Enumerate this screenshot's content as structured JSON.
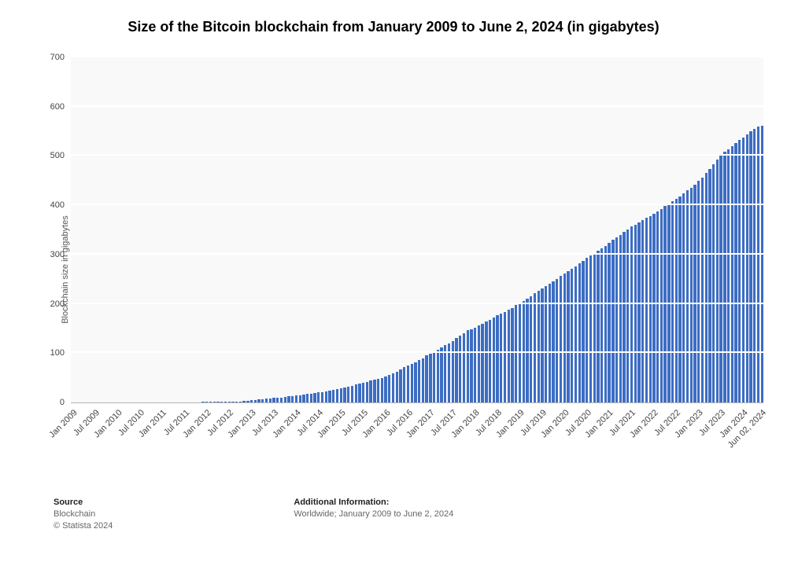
{
  "chart": {
    "type": "bar",
    "title": "Size of the Bitcoin blockchain from January 2009 to June 2, 2024 (in gigabytes)",
    "title_fontsize": 18,
    "ylabel": "Blockchain size in gigabytes",
    "ylabel_fontsize": 11,
    "ylim": [
      0,
      700
    ],
    "ytick_step": 100,
    "yticks": [
      0,
      100,
      200,
      300,
      400,
      500,
      600,
      700
    ],
    "categories": [
      "Jan 2009",
      "Feb 2009",
      "Mar 2009",
      "Apr 2009",
      "May 2009",
      "Jun 2009",
      "Jul 2009",
      "Aug 2009",
      "Sep 2009",
      "Oct 2009",
      "Nov 2009",
      "Dec 2009",
      "Jan 2010",
      "Feb 2010",
      "Mar 2010",
      "Apr 2010",
      "May 2010",
      "Jun 2010",
      "Jul 2010",
      "Aug 2010",
      "Sep 2010",
      "Oct 2010",
      "Nov 2010",
      "Dec 2010",
      "Jan 2011",
      "Feb 2011",
      "Mar 2011",
      "Apr 2011",
      "May 2011",
      "Jun 2011",
      "Jul 2011",
      "Aug 2011",
      "Sep 2011",
      "Oct 2011",
      "Nov 2011",
      "Dec 2011",
      "Jan 2012",
      "Feb 2012",
      "Mar 2012",
      "Apr 2012",
      "May 2012",
      "Jun 2012",
      "Jul 2012",
      "Aug 2012",
      "Sep 2012",
      "Oct 2012",
      "Nov 2012",
      "Dec 2012",
      "Jan 2013",
      "Feb 2013",
      "Mar 2013",
      "Apr 2013",
      "May 2013",
      "Jun 2013",
      "Jul 2013",
      "Aug 2013",
      "Sep 2013",
      "Oct 2013",
      "Nov 2013",
      "Dec 2013",
      "Jan 2014",
      "Feb 2014",
      "Mar 2014",
      "Apr 2014",
      "May 2014",
      "Jun 2014",
      "Jul 2014",
      "Aug 2014",
      "Sep 2014",
      "Oct 2014",
      "Nov 2014",
      "Dec 2014",
      "Jan 2015",
      "Feb 2015",
      "Mar 2015",
      "Apr 2015",
      "May 2015",
      "Jun 2015",
      "Jul 2015",
      "Aug 2015",
      "Sep 2015",
      "Oct 2015",
      "Nov 2015",
      "Dec 2015",
      "Jan 2016",
      "Feb 2016",
      "Mar 2016",
      "Apr 2016",
      "May 2016",
      "Jun 2016",
      "Jul 2016",
      "Aug 2016",
      "Sep 2016",
      "Oct 2016",
      "Nov 2016",
      "Dec 2016",
      "Jan 2017",
      "Feb 2017",
      "Mar 2017",
      "Apr 2017",
      "May 2017",
      "Jun 2017",
      "Jul 2017",
      "Aug 2017",
      "Sep 2017",
      "Oct 2017",
      "Nov 2017",
      "Dec 2017",
      "Jan 2018",
      "Feb 2018",
      "Mar 2018",
      "Apr 2018",
      "May 2018",
      "Jun 2018",
      "Jul 2018",
      "Aug 2018",
      "Sep 2018",
      "Oct 2018",
      "Nov 2018",
      "Dec 2018",
      "Jan 2019",
      "Feb 2019",
      "Mar 2019",
      "Apr 2019",
      "May 2019",
      "Jun 2019",
      "Jul 2019",
      "Aug 2019",
      "Sep 2019",
      "Oct 2019",
      "Nov 2019",
      "Dec 2019",
      "Jan 2020",
      "Feb 2020",
      "Mar 2020",
      "Apr 2020",
      "May 2020",
      "Jun 2020",
      "Jul 2020",
      "Aug 2020",
      "Sep 2020",
      "Oct 2020",
      "Nov 2020",
      "Dec 2020",
      "Jan 2021",
      "Feb 2021",
      "Mar 2021",
      "Apr 2021",
      "May 2021",
      "Jun 2021",
      "Jul 2021",
      "Aug 2021",
      "Sep 2021",
      "Oct 2021",
      "Nov 2021",
      "Dec 2021",
      "Jan 2022",
      "Feb 2022",
      "Mar 2022",
      "Apr 2022",
      "May 2022",
      "Jun 2022",
      "Jul 2022",
      "Aug 2022",
      "Sep 2022",
      "Oct 2022",
      "Nov 2022",
      "Dec 2022",
      "Jan 2023",
      "Feb 2023",
      "Mar 2023",
      "Apr 2023",
      "May 2023",
      "Jun 2023",
      "Jul 2023",
      "Aug 2023",
      "Sep 2023",
      "Oct 2023",
      "Nov 2023",
      "Dec 2023",
      "Jan 2024",
      "Feb 2024",
      "Mar 2024",
      "Apr 2024",
      "May 2024",
      "Jun 02, 2024"
    ],
    "values": [
      0,
      0,
      0,
      0,
      0,
      0,
      0,
      0,
      0,
      0,
      0,
      0,
      0,
      0,
      0,
      0,
      0,
      0,
      0,
      0,
      0,
      0,
      0,
      0,
      0,
      0,
      0,
      0,
      0,
      0,
      0,
      0,
      0,
      0,
      0,
      1,
      1,
      1,
      1,
      1,
      1,
      1,
      1,
      1,
      2,
      2,
      3,
      4,
      5,
      5,
      6,
      7,
      8,
      8,
      9,
      9,
      10,
      11,
      12,
      13,
      14,
      15,
      16,
      17,
      18,
      19,
      20,
      21,
      22,
      24,
      26,
      27,
      29,
      30,
      32,
      34,
      36,
      38,
      40,
      42,
      44,
      46,
      48,
      50,
      53,
      56,
      59,
      63,
      67,
      72,
      75,
      78,
      82,
      86,
      90,
      95,
      99,
      103,
      107,
      111,
      116,
      120,
      125,
      130,
      135,
      140,
      146,
      149,
      152,
      156,
      160,
      164,
      168,
      173,
      177,
      181,
      184,
      188,
      192,
      197,
      202,
      206,
      211,
      216,
      221,
      226,
      231,
      236,
      241,
      246,
      251,
      256,
      261,
      266,
      271,
      276,
      282,
      287,
      293,
      298,
      303,
      308,
      313,
      318,
      324,
      330,
      335,
      340,
      346,
      351,
      357,
      361,
      365,
      370,
      374,
      378,
      383,
      388,
      393,
      398,
      403,
      408,
      413,
      418,
      424,
      430,
      436,
      442,
      449,
      456,
      465,
      474,
      483,
      492,
      500,
      508,
      514,
      520,
      526,
      532,
      538,
      544,
      550,
      555,
      560,
      562
    ],
    "xticks_visible": [
      "Jan 2009",
      "Jul 2009",
      "Jan 2010",
      "Jul 2010",
      "Jan 2011",
      "Jul 2011",
      "Jan 2012",
      "Jul 2012",
      "Jan 2013",
      "Jul 2013",
      "Jan 2014",
      "Jul 2014",
      "Jan 2015",
      "Jul 2015",
      "Jan 2016",
      "Jul 2016",
      "Jan 2017",
      "Jul 2017",
      "Jan 2018",
      "Jul 2018",
      "Jan 2019",
      "Jul 2019",
      "Jan 2020",
      "Jul 2020",
      "Jan 2021",
      "Jul 2021",
      "Jan 2022",
      "Jul 2022",
      "Jan 2023",
      "Jul 2023",
      "Jan 2024",
      "Jun 02, 2024"
    ],
    "bar_color": "#3c6dc4",
    "plot_background": "#f9f9f9",
    "grid_color": "#ffffff",
    "axis_color": "#b5b5b5",
    "tick_label_fontsize": 11,
    "tick_label_color": "#444444",
    "bar_width_ratio": 0.7
  },
  "footer": {
    "source_heading": "Source",
    "source_text": "Blockchain",
    "copyright": "© Statista 2024",
    "info_heading": "Additional Information:",
    "info_text": "Worldwide; January 2009 to June 2, 2024"
  }
}
